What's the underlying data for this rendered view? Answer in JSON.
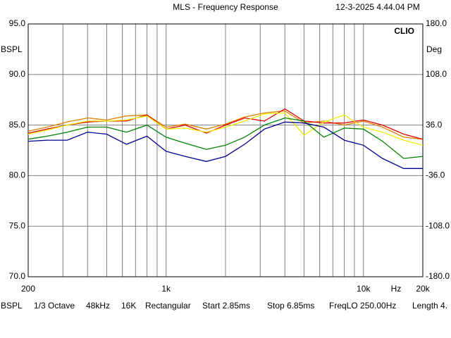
{
  "chart_data": {
    "type": "line",
    "title": "MLS - Frequency Response",
    "timestamp": "12-3-2025 4.44.04 PM",
    "brand": "CLIO",
    "ylabel": "BSPL",
    "y2label": "Deg",
    "xlabel": "Hz",
    "log_x": true,
    "grid": true,
    "xlim": [
      200,
      20000
    ],
    "xticks": [
      {
        "value": 200,
        "label": "200"
      },
      {
        "value": 300,
        "label": null
      },
      {
        "value": 400,
        "label": null
      },
      {
        "value": 500,
        "label": null
      },
      {
        "value": 600,
        "label": null
      },
      {
        "value": 700,
        "label": null
      },
      {
        "value": 800,
        "label": null
      },
      {
        "value": 900,
        "label": null
      },
      {
        "value": 1000,
        "label": "1k"
      },
      {
        "value": 2000,
        "label": null
      },
      {
        "value": 3000,
        "label": null
      },
      {
        "value": 4000,
        "label": null
      },
      {
        "value": 5000,
        "label": null
      },
      {
        "value": 6000,
        "label": null
      },
      {
        "value": 7000,
        "label": null
      },
      {
        "value": 8000,
        "label": null
      },
      {
        "value": 9000,
        "label": null
      },
      {
        "value": 10000,
        "label": "10k"
      },
      {
        "value": 20000,
        "label": "20k"
      }
    ],
    "ylim": [
      70,
      95
    ],
    "yticks": [
      {
        "value": 70,
        "label": "70.0"
      },
      {
        "value": 75,
        "label": "75.0"
      },
      {
        "value": 80,
        "label": "80.0"
      },
      {
        "value": 85,
        "label": "85.0"
      },
      {
        "value": 90,
        "label": "90.0"
      },
      {
        "value": 95,
        "label": "95.0"
      }
    ],
    "y2lim": [
      -180,
      180
    ],
    "y2ticks": [
      {
        "value": -180,
        "label": "-180.0"
      },
      {
        "value": -108,
        "label": "-108.0"
      },
      {
        "value": -36,
        "label": "-36.0"
      },
      {
        "value": 36,
        "label": "36.0"
      },
      {
        "value": 108,
        "label": "108.0"
      },
      {
        "value": 180,
        "label": "180.0"
      }
    ],
    "x": [
      200,
      250,
      315,
      400,
      500,
      630,
      800,
      1000,
      1250,
      1600,
      2000,
      2500,
      3150,
      4000,
      5000,
      6300,
      8000,
      10000,
      12500,
      16000,
      20000
    ],
    "series": [
      {
        "color": "#e08000",
        "values": [
          84.4,
          84.8,
          85.3,
          85.7,
          85.5,
          85.9,
          86.0,
          84.8,
          85.1,
          84.6,
          85.1,
          85.8,
          86.2,
          86.4,
          85.2,
          85.4,
          85.0,
          85.4,
          84.8,
          83.8,
          83.6
        ]
      },
      {
        "color": "#e00000",
        "values": [
          84.2,
          84.6,
          85.0,
          85.3,
          85.4,
          85.4,
          86.0,
          84.6,
          85.0,
          84.2,
          85.0,
          85.7,
          85.4,
          86.6,
          85.4,
          85.2,
          85.2,
          85.5,
          85.0,
          84.1,
          83.6
        ]
      },
      {
        "color": "#f0f000",
        "values": [
          84.1,
          84.5,
          85.0,
          85.4,
          85.4,
          85.5,
          85.9,
          84.6,
          84.7,
          84.3,
          84.8,
          85.4,
          86.1,
          86.2,
          84.0,
          85.3,
          86.0,
          84.8,
          84.3,
          83.5,
          83.0
        ]
      },
      {
        "color": "#008000",
        "values": [
          83.6,
          83.9,
          84.3,
          84.8,
          84.8,
          84.3,
          85.0,
          83.8,
          83.2,
          82.6,
          83.0,
          83.8,
          85.0,
          85.7,
          85.4,
          83.8,
          84.7,
          84.6,
          83.4,
          81.7,
          81.9
        ]
      },
      {
        "color": "#000090",
        "values": [
          83.4,
          83.5,
          83.5,
          84.3,
          84.1,
          83.1,
          83.9,
          82.4,
          81.9,
          81.4,
          81.9,
          83.1,
          84.6,
          85.3,
          85.2,
          84.8,
          83.5,
          83.0,
          81.7,
          80.7,
          80.7
        ]
      }
    ],
    "status": [
      "BSPL",
      "1/3 Octave",
      "48kHz",
      "16K",
      "Rectangular",
      "Start 2.85ms",
      "Stop 6.85ms",
      "FreqLO 250.00Hz",
      "Length 4."
    ]
  }
}
